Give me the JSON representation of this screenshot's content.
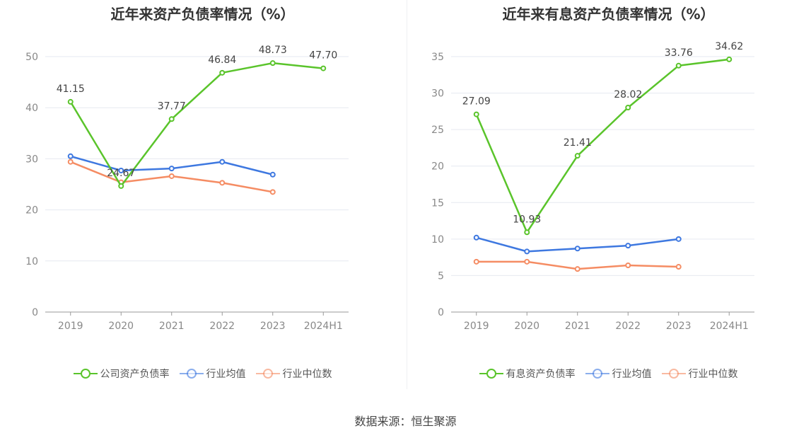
{
  "source_text": "数据来源：恒生聚源",
  "chart_data": [
    {
      "type": "line",
      "title": "近年来资产负债率情况（%）",
      "categories": [
        "2019",
        "2020",
        "2021",
        "2022",
        "2023",
        "2024H1"
      ],
      "ylim": [
        0,
        50
      ],
      "yticks": [
        0,
        10,
        20,
        30,
        40,
        50
      ],
      "grid": true,
      "legend_position": "bottom",
      "series": [
        {
          "name": "公司资产负债率",
          "color": "#5ac42b",
          "values": [
            41.15,
            24.67,
            37.77,
            46.84,
            48.73,
            47.7
          ],
          "labels": [
            "41.15",
            "24.67",
            "37.77",
            "46.84",
            "48.73",
            "47.70"
          ]
        },
        {
          "name": "行业均值",
          "color": "#3e78e0",
          "values": [
            30.5,
            27.7,
            28.1,
            29.4,
            26.9,
            null
          ]
        },
        {
          "name": "行业中位数",
          "color": "#f58c63",
          "values": [
            29.4,
            25.4,
            26.6,
            25.3,
            23.5,
            null
          ]
        }
      ]
    },
    {
      "type": "line",
      "title": "近年来有息资产负债率情况（%）",
      "categories": [
        "2019",
        "2020",
        "2021",
        "2022",
        "2023",
        "2024H1"
      ],
      "ylim": [
        0,
        35
      ],
      "yticks": [
        0,
        5,
        10,
        15,
        20,
        25,
        30,
        35
      ],
      "grid": true,
      "legend_position": "bottom",
      "series": [
        {
          "name": "有息资产负债率",
          "color": "#5ac42b",
          "values": [
            27.09,
            10.93,
            21.41,
            28.02,
            33.76,
            34.62
          ],
          "labels": [
            "27.09",
            "10.93",
            "21.41",
            "28.02",
            "33.76",
            "34.62"
          ]
        },
        {
          "name": "行业均值",
          "color": "#3e78e0",
          "values": [
            10.2,
            8.3,
            8.7,
            9.1,
            10.0,
            null
          ]
        },
        {
          "name": "行业中位数",
          "color": "#f58c63",
          "values": [
            6.9,
            6.9,
            5.9,
            6.4,
            6.2,
            null
          ]
        }
      ]
    }
  ]
}
